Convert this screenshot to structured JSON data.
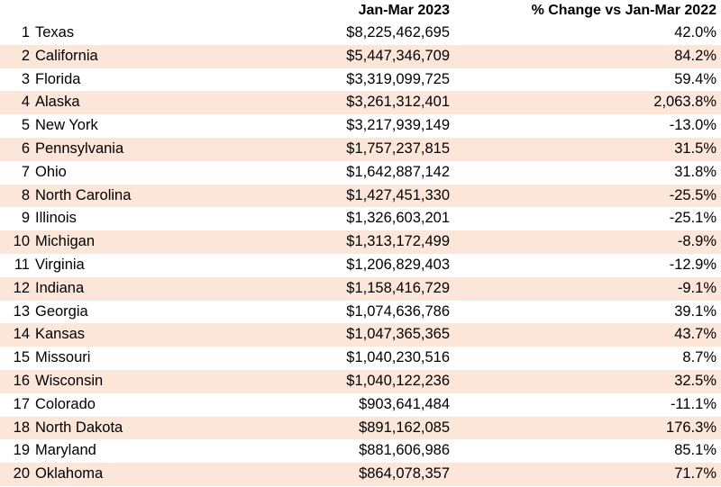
{
  "chart_data": {
    "type": "table",
    "columns": [
      "",
      "",
      "Jan-Mar 2023",
      "% Change vs Jan-Mar 2022"
    ],
    "rows": [
      {
        "rank": "1",
        "state": "Texas",
        "value": "$8,225,462,695",
        "change": "42.0%"
      },
      {
        "rank": "2",
        "state": "California",
        "value": "$5,447,346,709",
        "change": "84.2%"
      },
      {
        "rank": "3",
        "state": "Florida",
        "value": "$3,319,099,725",
        "change": "59.4%"
      },
      {
        "rank": "4",
        "state": "Alaska",
        "value": "$3,261,312,401",
        "change": "2,063.8%"
      },
      {
        "rank": "5",
        "state": "New York",
        "value": "$3,217,939,149",
        "change": "-13.0%"
      },
      {
        "rank": "6",
        "state": "Pennsylvania",
        "value": "$1,757,237,815",
        "change": "31.5%"
      },
      {
        "rank": "7",
        "state": "Ohio",
        "value": "$1,642,887,142",
        "change": "31.8%"
      },
      {
        "rank": "8",
        "state": "North Carolina",
        "value": "$1,427,451,330",
        "change": "-25.5%"
      },
      {
        "rank": "9",
        "state": "Illinois",
        "value": "$1,326,603,201",
        "change": "-25.1%"
      },
      {
        "rank": "10",
        "state": "Michigan",
        "value": "$1,313,172,499",
        "change": "-8.9%"
      },
      {
        "rank": "11",
        "state": "Virginia",
        "value": "$1,206,829,403",
        "change": "-12.9%"
      },
      {
        "rank": "12",
        "state": "Indiana",
        "value": "$1,158,416,729",
        "change": "-9.1%"
      },
      {
        "rank": "13",
        "state": "Georgia",
        "value": "$1,074,636,786",
        "change": "39.1%"
      },
      {
        "rank": "14",
        "state": "Kansas",
        "value": "$1,047,365,365",
        "change": "43.7%"
      },
      {
        "rank": "15",
        "state": "Missouri",
        "value": "$1,040,230,516",
        "change": "8.7%"
      },
      {
        "rank": "16",
        "state": "Wisconsin",
        "value": "$1,040,122,236",
        "change": "32.5%"
      },
      {
        "rank": "17",
        "state": "Colorado",
        "value": "$903,641,484",
        "change": "-11.1%"
      },
      {
        "rank": "18",
        "state": "North Dakota",
        "value": "$891,162,085",
        "change": "176.3%"
      },
      {
        "rank": "19",
        "state": "Maryland",
        "value": "$881,606,986",
        "change": "85.1%"
      },
      {
        "rank": "20",
        "state": "Oklahoma",
        "value": "$864,078,357",
        "change": "71.7%"
      }
    ],
    "banding": "alternate rows shaded",
    "colors": {
      "band": "#fbe6d9",
      "background": "#ffffff",
      "text": "#000000"
    }
  }
}
